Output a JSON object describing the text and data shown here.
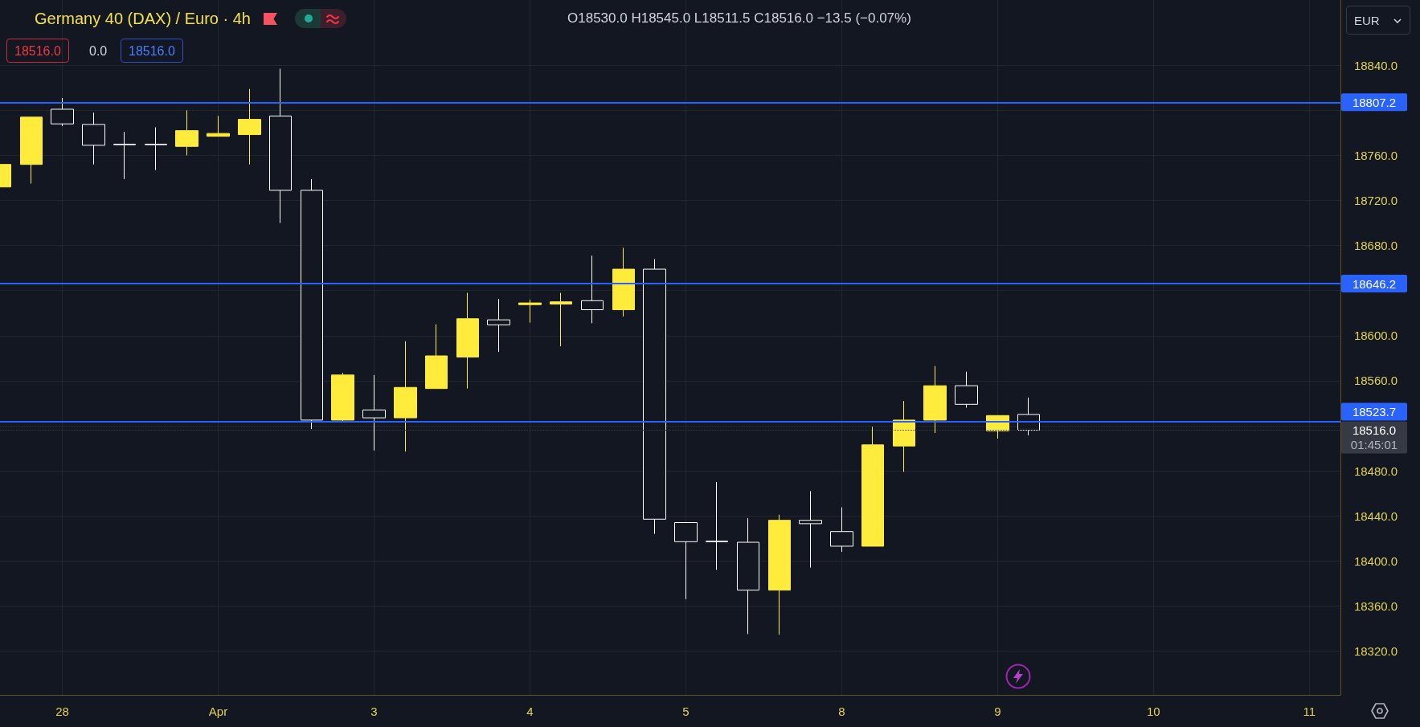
{
  "chart_data": {
    "type": "candlestick",
    "title": "Germany 40 (DAX) / Euro · 4h",
    "subtitle": "O18530.0 H18545.0 L18511.5 C18516.0 −13.5 (−0.07%)",
    "categories": [
      null,
      null,
      "28",
      null,
      null,
      null,
      null,
      "Apr",
      null,
      null,
      null,
      null,
      "3",
      null,
      null,
      null,
      null,
      "4",
      null,
      null,
      null,
      null,
      "5",
      null,
      null,
      null,
      null,
      "8",
      null,
      null,
      null,
      null,
      "9",
      null,
      null,
      null,
      null,
      "10",
      null,
      null,
      null,
      null,
      "11",
      null
    ],
    "ohlc": [
      [
        18732,
        18752,
        18732,
        18752
      ],
      [
        18752,
        18794,
        18735,
        18794
      ],
      [
        18801,
        18811,
        18786,
        18788
      ],
      [
        18787.5,
        18798,
        18752,
        18769
      ],
      [
        18770,
        18781,
        18739,
        18769.5
      ],
      [
        18770,
        18785,
        18747,
        18769.5
      ],
      [
        18768,
        18800,
        18760,
        18782
      ],
      [
        18777,
        18795,
        18777,
        18779.5
      ],
      [
        18778.5,
        18819,
        18752,
        18792
      ],
      [
        18795,
        18837,
        18700,
        18729
      ],
      [
        18729,
        18739,
        18517,
        18525
      ],
      [
        18525,
        18567,
        18524,
        18565
      ],
      [
        18534,
        18565,
        18498,
        18527
      ],
      [
        18527,
        18595,
        18497,
        18554
      ],
      [
        18553,
        18610,
        18553,
        18582
      ],
      [
        18581,
        18638,
        18553,
        18615
      ],
      [
        18614,
        18632.5,
        18585.5,
        18609.5
      ],
      [
        18627.5,
        18632,
        18611.5,
        18629
      ],
      [
        18628,
        18638,
        18590.5,
        18630
      ],
      [
        18631,
        18671,
        18611,
        18623
      ],
      [
        18623,
        18678,
        18617,
        18659
      ],
      [
        18659,
        18668,
        18424,
        18437
      ],
      [
        18434,
        18434,
        18366,
        18417
      ],
      [
        18417.5,
        18470,
        18392,
        18417
      ],
      [
        18416.5,
        18438,
        18335,
        18374
      ],
      [
        18374,
        18441,
        18334.5,
        18436
      ],
      [
        18436,
        18462,
        18394,
        18433
      ],
      [
        18426,
        18447.5,
        18408,
        18413
      ],
      [
        18413,
        18519,
        18413,
        18503
      ],
      [
        18502,
        18542,
        18479,
        18525
      ],
      [
        18525,
        18573,
        18513.5,
        18555.5
      ],
      [
        18555.5,
        18568,
        18536,
        18539
      ],
      [
        18515.5,
        18529,
        18508.5,
        18529
      ],
      [
        18530,
        18545,
        18511.5,
        18516
      ],
      null,
      null,
      null,
      null,
      null,
      null,
      null,
      null,
      null,
      null
    ],
    "colors": [
      "#ffeb3b",
      "#ffeb3b",
      "#ffffff",
      "#ffffff",
      "#ffffff",
      "#ffffff",
      "#ffeb3b",
      "#ffeb3b",
      "#ffeb3b",
      "#ffffff",
      "#ffffff",
      "#ffeb3b",
      "#ffffff",
      "#ffeb3b",
      "#ffeb3b",
      "#ffeb3b",
      "#ffffff",
      "#ffeb3b",
      "#ffeb3b",
      "#ffffff",
      "#ffeb3b",
      "#ffffff",
      "#ffffff",
      "#ffffff",
      "#ffffff",
      "#ffeb3b",
      "#ffffff",
      "#ffffff",
      "#ffeb3b",
      "#ffeb3b",
      "#ffeb3b",
      "#ffffff",
      "#ffeb3b",
      "#ffffff",
      null,
      null,
      null,
      null,
      null,
      null,
      null,
      null,
      null,
      null
    ],
    "ylim": [
      18281,
      18898
    ],
    "yticks": [
      {
        "value": 18320,
        "label": "18320.0"
      },
      {
        "value": 18360,
        "label": "18360.0"
      },
      {
        "value": 18400,
        "label": "18400.0"
      },
      {
        "value": 18440,
        "label": "18440.0"
      },
      {
        "value": 18480,
        "label": "18480.0"
      },
      {
        "value": 18520,
        "label": null
      },
      {
        "value": 18560,
        "label": "18560.0"
      },
      {
        "value": 18600,
        "label": "18600.0"
      },
      {
        "value": 18640,
        "label": null
      },
      {
        "value": 18680,
        "label": "18680.0"
      },
      {
        "value": 18720,
        "label": "18720.0"
      },
      {
        "value": 18760,
        "label": "18760.0"
      },
      {
        "value": 18800,
        "label": null
      },
      {
        "value": 18840,
        "label": "18840.0"
      }
    ],
    "grid": true,
    "ref_lines": [
      {
        "axis": "y",
        "value": 18807.2,
        "label": "18807.2",
        "color": "#2962ff",
        "line_style": "solid"
      },
      {
        "axis": "y",
        "value": 18646.2,
        "label": "18646.2",
        "color": "#2962ff",
        "line_style": "solid"
      },
      {
        "axis": "y",
        "value": 18523.7,
        "label": "18523.7",
        "color": "#2962ff",
        "line_style": "solid"
      },
      {
        "axis": "y",
        "value": 18516,
        "label": "18516.0\n01:45:01",
        "color": "#363a45",
        "line_style": "dotted"
      }
    ],
    "annotations": [
      "18516.0",
      "0.0",
      "18516.0",
      "EUR"
    ]
  }
}
